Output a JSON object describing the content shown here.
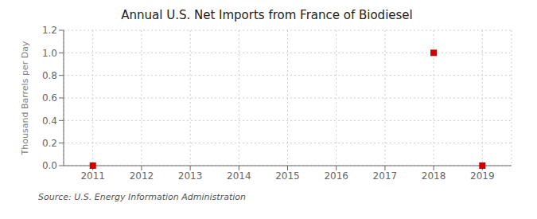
{
  "chart_data": {
    "type": "scatter",
    "title": "Annual U.S. Net Imports from France of Biodiesel",
    "y_label": "Thousand Barrels per Day",
    "annotations": [
      "Source: U.S. Energy Information Administration"
    ],
    "x": [
      2011,
      2018,
      2019
    ],
    "values": [
      0.0,
      1.0,
      0.0
    ],
    "color": "#cc0000",
    "marker": "square",
    "xlim": [
      2010.4,
      2019.6
    ],
    "ylim": [
      0.0,
      1.2
    ],
    "xticks": [
      2011,
      2012,
      2013,
      2014,
      2015,
      2016,
      2017,
      2018,
      2019
    ],
    "yticks": [
      {
        "value": 0.0,
        "label": "0.0"
      },
      0.2,
      0.4,
      0.6,
      0.8,
      {
        "value": 1.0,
        "label": "1.0"
      },
      1.2
    ],
    "grid": true
  }
}
